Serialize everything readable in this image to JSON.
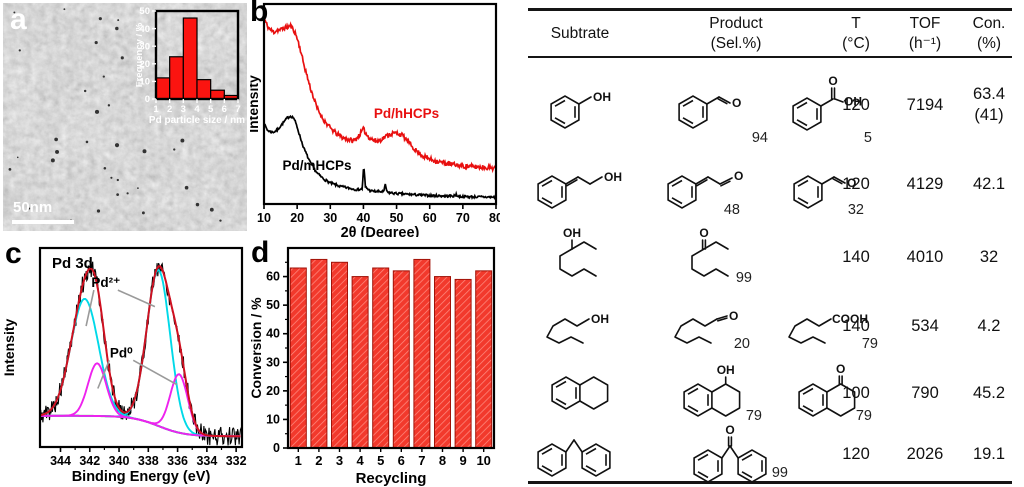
{
  "figure": {
    "panels": {
      "a": {
        "label": "a",
        "scale_bar": "50nm"
      },
      "b": {
        "label": "b"
      },
      "c": {
        "label": "c"
      },
      "d": {
        "label": "d"
      }
    }
  },
  "chart_data": [
    {
      "id": "a-inset",
      "type": "bar",
      "categories": [
        "1-2",
        "2-3",
        "3-4",
        "4-5",
        "5-6",
        "6-7"
      ],
      "values": [
        12,
        24,
        46,
        11,
        5,
        2
      ],
      "xlabel": "Pd particle size / nm",
      "ylabel": "Frequency / %",
      "xticks": [
        1,
        2,
        3,
        4,
        5,
        6,
        7
      ],
      "yticks": [
        0,
        10,
        20,
        30,
        40,
        50
      ],
      "xlim": [
        1,
        7
      ],
      "ylim": [
        0,
        50
      ],
      "bar_color": "#fb1410"
    },
    {
      "id": "b-xrd",
      "type": "line",
      "xlabel": "2θ (Degree)",
      "ylabel": "Intensity",
      "xlim": [
        10,
        80
      ],
      "xticks": [
        10,
        20,
        30,
        40,
        50,
        60,
        70,
        80
      ],
      "series": [
        {
          "name": "Pd/hHCPs",
          "color": "#e81010",
          "noise": 0.012,
          "seed": 11,
          "label_pos": [
            53,
            0.43
          ],
          "points": [
            [
              10,
              0.93
            ],
            [
              11,
              0.89
            ],
            [
              12,
              0.87
            ],
            [
              13,
              0.86
            ],
            [
              14,
              0.87
            ],
            [
              15,
              0.87
            ],
            [
              16,
              0.88
            ],
            [
              17,
              0.885
            ],
            [
              18,
              0.89
            ],
            [
              19,
              0.87
            ],
            [
              20,
              0.83
            ],
            [
              21,
              0.77
            ],
            [
              22,
              0.7
            ],
            [
              24,
              0.58
            ],
            [
              26,
              0.48
            ],
            [
              28,
              0.42
            ],
            [
              30,
              0.38
            ],
            [
              32,
              0.35
            ],
            [
              34,
              0.33
            ],
            [
              36,
              0.32
            ],
            [
              37,
              0.315
            ],
            [
              38,
              0.33
            ],
            [
              39,
              0.35
            ],
            [
              40,
              0.375
            ],
            [
              40.5,
              0.36
            ],
            [
              41,
              0.345
            ],
            [
              42,
              0.33
            ],
            [
              43,
              0.32
            ],
            [
              44,
              0.315
            ],
            [
              45,
              0.32
            ],
            [
              46,
              0.33
            ],
            [
              48,
              0.35
            ],
            [
              50,
              0.355
            ],
            [
              51,
              0.35
            ],
            [
              52,
              0.34
            ],
            [
              53,
              0.32
            ],
            [
              54,
              0.3
            ],
            [
              56,
              0.265
            ],
            [
              58,
              0.24
            ],
            [
              60,
              0.225
            ],
            [
              63,
              0.21
            ],
            [
              66,
              0.2
            ],
            [
              70,
              0.19
            ],
            [
              75,
              0.185
            ],
            [
              80,
              0.18
            ]
          ]
        },
        {
          "name": "Pd/mHCPs",
          "color": "#000000",
          "noise": 0.006,
          "seed": 7,
          "label_pos": [
            26,
            0.17
          ],
          "points": [
            [
              10,
              0.4
            ],
            [
              11,
              0.37
            ],
            [
              12,
              0.36
            ],
            [
              13,
              0.36
            ],
            [
              14,
              0.37
            ],
            [
              15,
              0.39
            ],
            [
              16,
              0.41
            ],
            [
              17,
              0.43
            ],
            [
              18,
              0.44
            ],
            [
              19,
              0.43
            ],
            [
              20,
              0.385
            ],
            [
              21,
              0.33
            ],
            [
              22,
              0.28
            ],
            [
              24,
              0.205
            ],
            [
              26,
              0.155
            ],
            [
              28,
              0.125
            ],
            [
              30,
              0.105
            ],
            [
              33,
              0.088
            ],
            [
              36,
              0.078
            ],
            [
              38,
              0.072
            ],
            [
              39.6,
              0.075
            ],
            [
              40.1,
              0.19
            ],
            [
              40.6,
              0.085
            ],
            [
              42,
              0.066
            ],
            [
              44,
              0.062
            ],
            [
              46.2,
              0.062
            ],
            [
              46.6,
              0.1
            ],
            [
              47.1,
              0.058
            ],
            [
              50,
              0.052
            ],
            [
              55,
              0.047
            ],
            [
              60,
              0.042
            ],
            [
              65,
              0.04
            ],
            [
              67.7,
              0.04
            ],
            [
              68,
              0.052
            ],
            [
              68.4,
              0.038
            ],
            [
              72,
              0.036
            ],
            [
              80,
              0.034
            ]
          ]
        }
      ]
    },
    {
      "id": "c-xps",
      "type": "line",
      "title": "Pd 3d",
      "xlabel": "Binding Energy (eV)",
      "ylabel": "Intensity",
      "xlim": [
        345.4,
        331.6
      ],
      "xticks": [
        344,
        342,
        340,
        338,
        336,
        334,
        332
      ],
      "background": {
        "base": 0.055,
        "step": 0.105,
        "center": 337.3,
        "width": 0.9,
        "color": "#17b53a"
      },
      "peaks": [
        {
          "assign": "Pd2+",
          "color": "#00d9e8",
          "c": 342.35,
          "s": 0.95,
          "a": 0.6
        },
        {
          "assign": "Pd2+",
          "color": "#00d9e8",
          "c": 337.3,
          "s": 0.8,
          "a": 0.8
        },
        {
          "assign": "Pd0",
          "color": "#ee22ee",
          "c": 341.5,
          "s": 0.62,
          "a": 0.27
        },
        {
          "assign": "Pd0",
          "color": "#ee22ee",
          "c": 335.9,
          "s": 0.6,
          "a": 0.3
        }
      ],
      "envelope_color": "#cf1020",
      "data_color": "#000000",
      "noise": 0.048,
      "seed": 5,
      "annotations": [
        {
          "text": "Pd²⁺",
          "x": 340.9,
          "y": 0.82,
          "targets": [
            [
              342.25,
              0.62
            ],
            [
              337.55,
              0.72
            ]
          ]
        },
        {
          "text": "Pd⁰",
          "x": 339.85,
          "y": 0.46,
          "targets": [
            [
              341.45,
              0.3
            ],
            [
              336.05,
              0.32
            ]
          ]
        }
      ]
    },
    {
      "id": "d-recycle",
      "type": "bar",
      "categories": [
        "1",
        "2",
        "3",
        "4",
        "5",
        "6",
        "7",
        "8",
        "9",
        "10"
      ],
      "values": [
        63,
        66,
        65,
        60,
        63,
        62,
        66,
        60,
        59,
        62
      ],
      "xlabel": "Recycling",
      "ylabel": "Conversion / %",
      "yticks": [
        0,
        10,
        20,
        30,
        40,
        50,
        60
      ],
      "ylim": [
        0,
        70
      ],
      "bar_color": "#f2392c",
      "hatch_color": "#ff8b80",
      "bar_edge": "#a01208"
    }
  ],
  "table": {
    "headers": {
      "substrate": "Subtrate",
      "product_l1": "Product",
      "product_l2": "(Sel.%)",
      "t_l1": "T",
      "t_l2": "(°C)",
      "tof_l1": "TOF",
      "tof_l2": "(h⁻¹)",
      "con_l1": "Con.",
      "con_l2": "(%)"
    },
    "rows": [
      {
        "substrate": {
          "molecule": "benzyl-alcohol",
          "labels": {
            "oh": "OH"
          }
        },
        "products": [
          {
            "molecule": "benzaldehyde",
            "labels": {
              "o": "O"
            },
            "sel": "94"
          },
          {
            "molecule": "benzoic-acid",
            "labels": {
              "o": "O",
              "oh": "OH"
            },
            "sel": "5"
          }
        ],
        "T": "120",
        "TOF": "7194",
        "con": "63.4",
        "con2": "(41)"
      },
      {
        "substrate": {
          "molecule": "cinnamyl-alcohol",
          "labels": {
            "oh": "OH"
          }
        },
        "products": [
          {
            "molecule": "cinnamaldehyde",
            "labels": {
              "o": "O"
            },
            "sel": "48"
          },
          {
            "molecule": "benzaldehyde",
            "labels": {
              "o": "O"
            },
            "sel": "32"
          }
        ],
        "T": "120",
        "TOF": "4129",
        "con": "42.1",
        "con2": ""
      },
      {
        "substrate": {
          "molecule": "octan-3-ol",
          "labels": {
            "oh": "OH"
          }
        },
        "products": [
          {
            "molecule": "octan-3-one",
            "labels": {
              "o": "O"
            },
            "sel": "99"
          }
        ],
        "T": "140",
        "TOF": "4010",
        "con": "32",
        "con2": ""
      },
      {
        "substrate": {
          "molecule": "octan-1-ol",
          "labels": {
            "oh": "OH"
          }
        },
        "products": [
          {
            "molecule": "octanal",
            "labels": {
              "o": "O"
            },
            "sel": "20"
          },
          {
            "molecule": "octanoic-acid",
            "labels": {
              "cooh": "COOH"
            },
            "sel": "79"
          }
        ],
        "T": "140",
        "TOF": "534",
        "con": "4.2",
        "con2": ""
      },
      {
        "substrate": {
          "molecule": "tetralin",
          "labels": {}
        },
        "products": [
          {
            "molecule": "tetralol",
            "labels": {
              "oh": "OH"
            },
            "sel": "79"
          },
          {
            "molecule": "tetralone",
            "labels": {
              "o": "O"
            },
            "sel": "79"
          }
        ],
        "T": "100",
        "TOF": "790",
        "con": "45.2",
        "con2": ""
      },
      {
        "substrate": {
          "molecule": "diphenylmethane",
          "labels": {}
        },
        "products": [
          {
            "molecule": "benzophenone",
            "labels": {
              "o": "O"
            },
            "sel": "99"
          }
        ],
        "T": "120",
        "TOF": "2026",
        "con": "19.1",
        "con2": ""
      }
    ]
  }
}
